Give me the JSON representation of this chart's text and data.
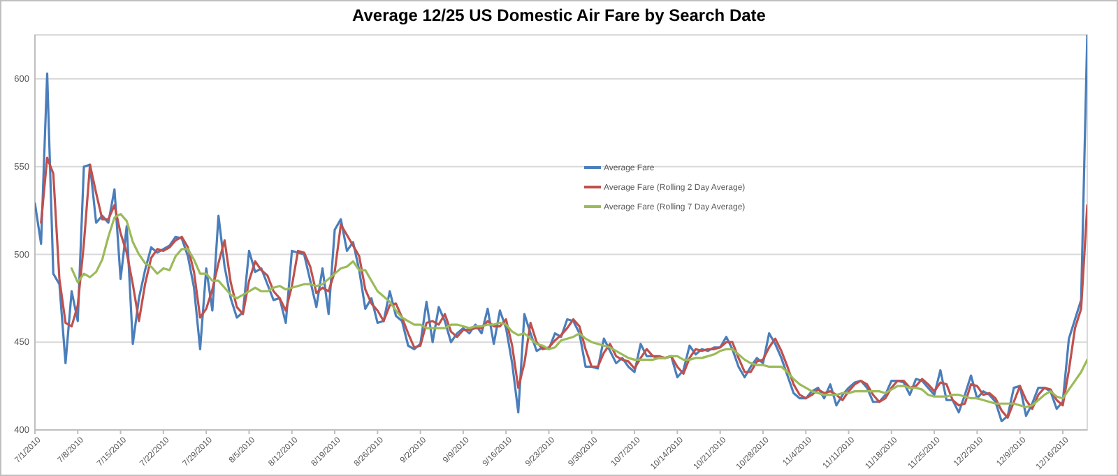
{
  "chart_data": {
    "type": "line",
    "title": "Average 12/25 US Domestic Air Fare by Search Date",
    "x": [
      "2010-07-01",
      "2010-07-02",
      "2010-07-03",
      "2010-07-04",
      "2010-07-05",
      "2010-07-06",
      "2010-07-07",
      "2010-07-08",
      "2010-07-09",
      "2010-07-10",
      "2010-07-11",
      "2010-07-12",
      "2010-07-13",
      "2010-07-14",
      "2010-07-15",
      "2010-07-16",
      "2010-07-17",
      "2010-07-18",
      "2010-07-19",
      "2010-07-20",
      "2010-07-21",
      "2010-07-22",
      "2010-07-23",
      "2010-07-24",
      "2010-07-25",
      "2010-07-26",
      "2010-07-27",
      "2010-07-28",
      "2010-07-29",
      "2010-07-30",
      "2010-07-31",
      "2010-08-01",
      "2010-08-02",
      "2010-08-03",
      "2010-08-04",
      "2010-08-05",
      "2010-08-06",
      "2010-08-07",
      "2010-08-08",
      "2010-08-09",
      "2010-08-10",
      "2010-08-11",
      "2010-08-12",
      "2010-08-13",
      "2010-08-14",
      "2010-08-15",
      "2010-08-16",
      "2010-08-17",
      "2010-08-18",
      "2010-08-19",
      "2010-08-20",
      "2010-08-21",
      "2010-08-22",
      "2010-08-23",
      "2010-08-24",
      "2010-08-25",
      "2010-08-26",
      "2010-08-27",
      "2010-08-28",
      "2010-08-29",
      "2010-08-30",
      "2010-08-31",
      "2010-09-01",
      "2010-09-02",
      "2010-09-03",
      "2010-09-04",
      "2010-09-05",
      "2010-09-06",
      "2010-09-07",
      "2010-09-08",
      "2010-09-09",
      "2010-09-10",
      "2010-09-11",
      "2010-09-12",
      "2010-09-13",
      "2010-09-14",
      "2010-09-15",
      "2010-09-16",
      "2010-09-17",
      "2010-09-18",
      "2010-09-19",
      "2010-09-20",
      "2010-09-21",
      "2010-09-22",
      "2010-09-23",
      "2010-09-24",
      "2010-09-25",
      "2010-09-26",
      "2010-09-27",
      "2010-09-28",
      "2010-09-29",
      "2010-09-30",
      "2010-10-01",
      "2010-10-02",
      "2010-10-03",
      "2010-10-04",
      "2010-10-05",
      "2010-10-06",
      "2010-10-07",
      "2010-10-08",
      "2010-10-09",
      "2010-10-10",
      "2010-10-11",
      "2010-10-12",
      "2010-10-13",
      "2010-10-14",
      "2010-10-15",
      "2010-10-16",
      "2010-10-17",
      "2010-10-18",
      "2010-10-19",
      "2010-10-20",
      "2010-10-21",
      "2010-10-22",
      "2010-10-23",
      "2010-10-24",
      "2010-10-25",
      "2010-10-26",
      "2010-10-27",
      "2010-10-28",
      "2010-10-29",
      "2010-10-30",
      "2010-10-31",
      "2010-11-01",
      "2010-11-02",
      "2010-11-03",
      "2010-11-04",
      "2010-11-05",
      "2010-11-06",
      "2010-11-07",
      "2010-11-08",
      "2010-11-09",
      "2010-11-10",
      "2010-11-11",
      "2010-11-12",
      "2010-11-13",
      "2010-11-14",
      "2010-11-15",
      "2010-11-16",
      "2010-11-17",
      "2010-11-18",
      "2010-11-19",
      "2010-11-20",
      "2010-11-21",
      "2010-11-22",
      "2010-11-23",
      "2010-11-24",
      "2010-11-25",
      "2010-11-26",
      "2010-11-27",
      "2010-11-28",
      "2010-11-29",
      "2010-11-30",
      "2010-12-01",
      "2010-12-02",
      "2010-12-03",
      "2010-12-04",
      "2010-12-05",
      "2010-12-06",
      "2010-12-07",
      "2010-12-08",
      "2010-12-09",
      "2010-12-10",
      "2010-12-11",
      "2010-12-12",
      "2010-12-13",
      "2010-12-14",
      "2010-12-15",
      "2010-12-16",
      "2010-12-17",
      "2010-12-18",
      "2010-12-19",
      "2010-12-20"
    ],
    "series": [
      {
        "name": "Average Fare",
        "color": "#4a7ebb",
        "values": [
          529,
          506,
          603,
          489,
          483,
          438,
          479,
          462,
          550,
          551,
          518,
          522,
          518,
          537,
          486,
          516,
          449,
          475,
          491,
          504,
          501,
          503,
          505,
          510,
          509,
          499,
          481,
          446,
          492,
          468,
          522,
          493,
          475,
          464,
          467,
          502,
          490,
          492,
          483,
          474,
          475,
          461,
          502,
          501,
          500,
          485,
          470,
          492,
          466,
          514,
          520,
          502,
          507,
          491,
          469,
          475,
          461,
          462,
          479,
          465,
          462,
          448,
          446,
          449,
          473,
          450,
          470,
          462,
          450,
          455,
          458,
          455,
          460,
          455,
          469,
          449,
          468,
          458,
          438,
          410,
          466,
          455,
          445,
          447,
          446,
          455,
          453,
          463,
          462,
          455,
          436,
          436,
          435,
          452,
          445,
          438,
          441,
          436,
          433,
          449,
          442,
          442,
          441,
          441,
          442,
          430,
          434,
          448,
          443,
          446,
          445,
          447,
          447,
          453,
          446,
          436,
          430,
          436,
          441,
          438,
          455,
          449,
          441,
          431,
          421,
          418,
          418,
          422,
          424,
          418,
          426,
          414,
          420,
          424,
          427,
          428,
          424,
          416,
          416,
          420,
          428,
          428,
          427,
          420,
          429,
          428,
          424,
          420,
          434,
          417,
          417,
          410,
          420,
          431,
          418,
          422,
          420,
          416,
          405,
          408,
          424,
          425,
          408,
          415,
          424,
          424,
          422,
          412,
          416,
          452,
          463,
          474,
          625
        ]
      },
      {
        "name": "Average Fare (Rolling 2 Day Average)",
        "color": "#c0504d",
        "values": [
          null,
          518,
          555,
          546,
          486,
          461,
          459,
          471,
          506,
          551,
          535,
          520,
          520,
          528,
          512,
          501,
          483,
          462,
          483,
          498,
          503,
          502,
          504,
          508,
          510,
          504,
          490,
          464,
          469,
          480,
          495,
          508,
          484,
          470,
          466,
          485,
          496,
          491,
          488,
          479,
          475,
          468,
          482,
          502,
          501,
          493,
          478,
          481,
          479,
          490,
          517,
          511,
          505,
          499,
          480,
          472,
          468,
          462,
          471,
          472,
          464,
          455,
          447,
          448,
          461,
          462,
          460,
          466,
          456,
          453,
          457,
          457,
          458,
          458,
          462,
          459,
          459,
          463,
          448,
          424,
          438,
          461,
          450,
          446,
          447,
          451,
          454,
          458,
          463,
          459,
          446,
          436,
          436,
          444,
          449,
          442,
          440,
          439,
          435,
          441,
          446,
          442,
          442,
          441,
          442,
          436,
          432,
          441,
          446,
          445,
          446,
          446,
          447,
          450,
          450,
          441,
          433,
          433,
          439,
          440,
          447,
          452,
          445,
          436,
          426,
          420,
          418,
          420,
          423,
          421,
          422,
          420,
          417,
          422,
          426,
          428,
          426,
          420,
          416,
          418,
          424,
          428,
          428,
          424,
          425,
          429,
          426,
          422,
          427,
          426,
          417,
          414,
          415,
          426,
          425,
          420,
          421,
          418,
          411,
          407,
          416,
          425,
          417,
          412,
          420,
          424,
          423,
          417,
          414,
          434,
          458,
          469,
          528
        ]
      },
      {
        "name": "Average Fare (Rolling 7 Day Average)",
        "color": "#9bbb59",
        "values": [
          null,
          null,
          null,
          null,
          null,
          null,
          492,
          484,
          489,
          487,
          490,
          497,
          510,
          521,
          523,
          519,
          507,
          500,
          495,
          493,
          489,
          492,
          491,
          499,
          503,
          503,
          497,
          489,
          489,
          485,
          485,
          481,
          477,
          475,
          477,
          479,
          481,
          479,
          479,
          481,
          482,
          480,
          481,
          482,
          483,
          483,
          482,
          483,
          486,
          489,
          492,
          493,
          496,
          491,
          491,
          485,
          479,
          476,
          473,
          468,
          464,
          462,
          460,
          460,
          458,
          458,
          458,
          458,
          460,
          460,
          459,
          458,
          459,
          459,
          460,
          460,
          461,
          460,
          456,
          454,
          455,
          452,
          449,
          448,
          446,
          447,
          451,
          452,
          453,
          455,
          452,
          450,
          449,
          448,
          447,
          445,
          443,
          441,
          440,
          440,
          440,
          440,
          441,
          441,
          442,
          442,
          440,
          440,
          441,
          441,
          442,
          443,
          445,
          446,
          446,
          443,
          440,
          438,
          437,
          437,
          436,
          436,
          436,
          433,
          429,
          426,
          424,
          422,
          421,
          420,
          420,
          420,
          421,
          421,
          422,
          422,
          422,
          422,
          422,
          421,
          423,
          425,
          425,
          424,
          424,
          423,
          420,
          419,
          419,
          419,
          420,
          420,
          419,
          418,
          418,
          417,
          416,
          415,
          415,
          415,
          415,
          414,
          413,
          414,
          417,
          420,
          422,
          419,
          418,
          423,
          428,
          433,
          440
        ]
      }
    ],
    "xlim": [
      "2010-07-01",
      "2010-12-20"
    ],
    "xticks": [
      {
        "value": "2010-07-01",
        "label": "7/1/2010"
      },
      {
        "value": "2010-07-08",
        "label": "7/8/2010"
      },
      {
        "value": "2010-07-15",
        "label": "7/15/2010"
      },
      {
        "value": "2010-07-22",
        "label": "7/22/2010"
      },
      {
        "value": "2010-07-29",
        "label": "7/29/2010"
      },
      {
        "value": "2010-08-05",
        "label": "8/5/2010"
      },
      {
        "value": "2010-08-12",
        "label": "8/12/2010"
      },
      {
        "value": "2010-08-19",
        "label": "8/19/2010"
      },
      {
        "value": "2010-08-26",
        "label": "8/26/2010"
      },
      {
        "value": "2010-09-02",
        "label": "9/2/2010"
      },
      {
        "value": "2010-09-09",
        "label": "9/9/2010"
      },
      {
        "value": "2010-09-16",
        "label": "9/16/2010"
      },
      {
        "value": "2010-09-23",
        "label": "9/23/2010"
      },
      {
        "value": "2010-09-30",
        "label": "9/30/2010"
      },
      {
        "value": "2010-10-07",
        "label": "10/7/2010"
      },
      {
        "value": "2010-10-14",
        "label": "10/14/2010"
      },
      {
        "value": "2010-10-21",
        "label": "10/21/2010"
      },
      {
        "value": "2010-10-28",
        "label": "10/28/2010"
      },
      {
        "value": "2010-11-04",
        "label": "11/4/2010"
      },
      {
        "value": "2010-11-11",
        "label": "11/11/2010"
      },
      {
        "value": "2010-11-18",
        "label": "11/18/2010"
      },
      {
        "value": "2010-11-25",
        "label": "11/25/2010"
      },
      {
        "value": "2010-12-02",
        "label": "12/2/2010"
      },
      {
        "value": "2010-12-09",
        "label": "12/9/2010"
      },
      {
        "value": "2010-12-16",
        "label": "12/16/2010"
      }
    ],
    "ylim": [
      400,
      625
    ],
    "yticks": [
      400,
      450,
      500,
      550,
      600
    ],
    "grid": "y",
    "legend": "top right",
    "marker": "none",
    "line_style": "solid"
  }
}
